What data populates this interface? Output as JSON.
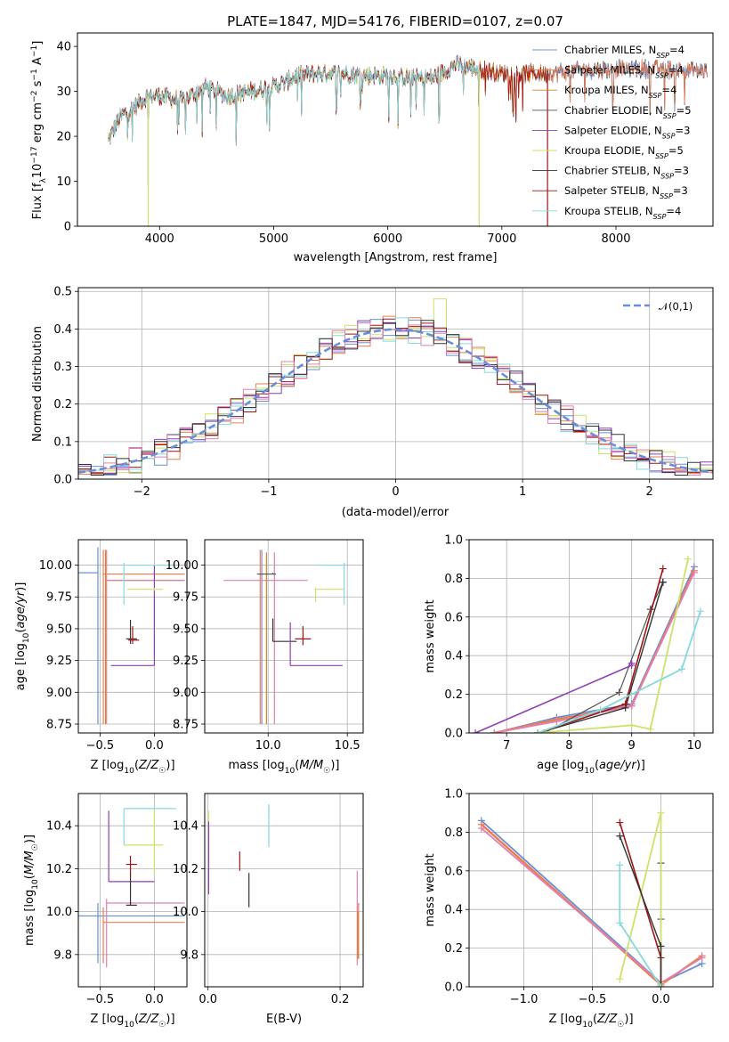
{
  "colors": {
    "Chabrier MILES": "#6b8fd6",
    "Salpeter MILES": "#ee7d4e",
    "Kroupa MILES": "#c98a1e",
    "Chabrier ELODIE": "#555555",
    "Salpeter ELODIE": "#8e3fb5",
    "Kroupa ELODIE": "#cbe36a",
    "Chabrier STELIB": "#333333",
    "Salpeter STELIB": "#a01515",
    "Kroupa STELIB": "#84d9dc",
    "extra_pink": "#e07fb0",
    "normal": "#6a8fd8"
  },
  "chart_data": [
    {
      "id": "spectrum",
      "type": "line",
      "title": "PLATE=1847, MJD=54176, FIBERID=0107, z=0.07",
      "xlabel": "wavelength [Angstrom, rest frame]",
      "ylabel": "Flux [f_λ 10^-17 erg cm^-2 s^-1 A^-1]",
      "xlim": [
        3280,
        8850
      ],
      "ylim": [
        0,
        43
      ],
      "xticks": [
        4000,
        5000,
        6000,
        7000,
        8000
      ],
      "yticks": [
        0,
        10,
        20,
        30,
        40
      ],
      "grid": false,
      "legend": "top-right",
      "continuum": [
        [
          3550,
          19
        ],
        [
          3650,
          24
        ],
        [
          3800,
          27
        ],
        [
          3900,
          29
        ],
        [
          4000,
          29
        ],
        [
          4200,
          28
        ],
        [
          4400,
          31
        ],
        [
          4600,
          29
        ],
        [
          4800,
          30
        ],
        [
          5000,
          31
        ],
        [
          5100,
          32
        ],
        [
          5200,
          33.5
        ],
        [
          5400,
          34
        ],
        [
          5600,
          34
        ],
        [
          5800,
          33.5
        ],
        [
          6000,
          33.5
        ],
        [
          6200,
          33
        ],
        [
          6400,
          33
        ],
        [
          6600,
          36
        ],
        [
          6800,
          35
        ],
        [
          7000,
          34
        ],
        [
          7200,
          34
        ],
        [
          7400,
          34
        ],
        [
          7600,
          34.5
        ],
        [
          8000,
          35
        ],
        [
          8400,
          35
        ],
        [
          8800,
          34.5
        ]
      ],
      "features": [
        {
          "name": "Salpeter ELODIE",
          "x": 3900,
          "ymin": 9
        },
        {
          "name": "Kroupa ELODIE",
          "x": 3900,
          "ymin": 0
        },
        {
          "name": "Kroupa ELODIE",
          "x": 6800,
          "ymin": 0
        },
        {
          "name": "Salpeter STELIB",
          "x": 7400,
          "ymin": 0
        }
      ],
      "series": [
        {
          "name": "Chabrier MILES",
          "label": "Chabrier MILES, N",
          "sub": "SSP",
          "n": "=4",
          "xmin": 3550,
          "xmax": 8800
        },
        {
          "name": "Salpeter MILES",
          "label": "Salpeter MILES, N",
          "sub": "SSP",
          "n": "=4",
          "xmin": 3550,
          "xmax": 8800
        },
        {
          "name": "Kroupa MILES",
          "label": "Kroupa MILES, N",
          "sub": "SSP",
          "n": "=4",
          "xmin": 3550,
          "xmax": 7400
        },
        {
          "name": "Chabrier ELODIE",
          "label": "Chabrier ELODIE, N",
          "sub": "SSP",
          "n": "=5",
          "xmin": 3550,
          "xmax": 8800
        },
        {
          "name": "Salpeter ELODIE",
          "label": "Salpeter ELODIE, N",
          "sub": "SSP",
          "n": "=3",
          "xmin": 3550,
          "xmax": 6800
        },
        {
          "name": "Kroupa ELODIE",
          "label": "Kroupa ELODIE, N",
          "sub": "SSP",
          "n": "=5",
          "xmin": 3550,
          "xmax": 6800
        },
        {
          "name": "Chabrier STELIB",
          "label": "Chabrier STELIB, N",
          "sub": "SSP",
          "n": "=3",
          "xmin": 3550,
          "xmax": 8800
        },
        {
          "name": "Salpeter STELIB",
          "label": "Salpeter STELIB, N",
          "sub": "SSP",
          "n": "=3",
          "xmin": 3550,
          "xmax": 7400
        },
        {
          "name": "Kroupa STELIB",
          "label": "Kroupa STELIB, N",
          "sub": "SSP",
          "n": "=4",
          "xmin": 3550,
          "xmax": 6800
        }
      ]
    },
    {
      "id": "residuals",
      "type": "bar",
      "title": "",
      "xlabel": "(data-model)/error",
      "ylabel": "Normed distribution",
      "xlim": [
        -2.5,
        2.5
      ],
      "ylim": [
        0,
        0.51
      ],
      "xticks": [
        -2,
        -1,
        0,
        1,
        2
      ],
      "yticks": [
        0.0,
        0.1,
        0.2,
        0.3,
        0.4,
        0.5
      ],
      "grid": true,
      "legend": "top-right",
      "legend_label": "𝒩(0,1)",
      "bin_width": 0.1,
      "hist_colors": [
        "Chabrier MILES",
        "Salpeter MILES",
        "Kroupa ELODIE",
        "Salpeter ELODIE",
        "Salpeter STELIB",
        "Kroupa STELIB",
        "extra_pink",
        "Chabrier STELIB"
      ]
    },
    {
      "id": "age-z",
      "type": "scatter",
      "xlabel": "Z [log₁₀(Z/Z☉)]",
      "ylabel": "age  [log₁₀(age/yr)]",
      "xlim": [
        -0.7,
        0.3
      ],
      "ylim": [
        8.68,
        10.2
      ],
      "xticks": [
        -0.5,
        0.0
      ],
      "xtick_labels": [
        "−0.5",
        "0.0"
      ],
      "yticks": [
        8.75,
        9.0,
        9.25,
        9.5,
        9.75,
        10.0
      ],
      "grid": true,
      "points": [
        {
          "c": "Chabrier MILES",
          "x": -0.52,
          "xe": [
            -0.72,
            -0.52
          ],
          "y": 9.94,
          "ye": [
            8.75,
            10.14
          ]
        },
        {
          "c": "Salpeter MILES",
          "x": -0.47,
          "xe": [
            -0.47,
            0.28
          ],
          "y": 9.93,
          "ye": [
            8.75,
            10.12
          ]
        },
        {
          "c": "Kroupa MILES",
          "x": -0.45,
          "xe": [
            -0.45,
            0.28
          ],
          "y": 9.88,
          "ye": [
            8.75,
            10.12
          ]
        },
        {
          "c": "extra_pink",
          "x": -0.44,
          "xe": [
            -0.44,
            0.28
          ],
          "y": 9.88,
          "ye": [
            8.75,
            10.12
          ]
        },
        {
          "c": "Chabrier STELIB",
          "x": -0.22,
          "xe": [
            -0.26,
            -0.16
          ],
          "y": 9.42,
          "ye": [
            9.38,
            9.57
          ]
        },
        {
          "c": "Salpeter STELIB",
          "x": -0.2,
          "xe": [
            -0.24,
            -0.14
          ],
          "y": 9.41,
          "ye": [
            9.38,
            9.52
          ]
        },
        {
          "c": "Salpeter ELODIE",
          "x": 0.0,
          "xe": [
            -0.4,
            0.0
          ],
          "y": 9.21,
          "ye": [
            9.21,
            10.0
          ]
        },
        {
          "c": "Kroupa ELODIE",
          "x": 0.0,
          "xe": [
            -0.25,
            0.08
          ],
          "y": 9.81,
          "ye": [
            9.8,
            9.82
          ]
        },
        {
          "c": "Kroupa STELIB",
          "x": -0.28,
          "xe": [
            -0.28,
            0.2
          ],
          "y": 10.0,
          "ye": [
            9.69,
            10.02
          ]
        }
      ]
    },
    {
      "id": "age-mass",
      "type": "scatter",
      "xlabel": "mass [log₁₀(M/M☉)]",
      "ylabel": "",
      "xlim": [
        9.6,
        10.6
      ],
      "ylim": [
        8.68,
        10.2
      ],
      "xticks": [
        10.0,
        10.5
      ],
      "xtick_labels": [
        "10.0",
        "10.5"
      ],
      "yticks": [
        8.75,
        9.0,
        9.25,
        9.5,
        9.75,
        10.0
      ],
      "grid": true,
      "points": [
        {
          "c": "Chabrier MILES",
          "x": 9.96,
          "xe": [
            9.96,
            9.96
          ],
          "y": 9.94,
          "ye": [
            8.75,
            10.12
          ]
        },
        {
          "c": "Salpeter MILES",
          "x": 9.95,
          "xe": [
            9.95,
            9.95
          ],
          "y": 9.93,
          "ye": [
            8.75,
            10.12
          ]
        },
        {
          "c": "Kroupa MILES",
          "x": 9.99,
          "xe": [
            9.99,
            9.99
          ],
          "y": 9.9,
          "ye": [
            8.75,
            10.1
          ]
        },
        {
          "c": "extra_pink",
          "x": 10.04,
          "xe": [
            9.72,
            10.25
          ],
          "y": 9.88,
          "ye": [
            8.75,
            10.1
          ]
        },
        {
          "c": "Chabrier ELODIE",
          "x": 10.03,
          "xe": [
            9.93,
            10.05
          ],
          "y": 9.93,
          "ye": [
            9.93,
            9.94
          ]
        },
        {
          "c": "Chabrier STELIB",
          "x": 10.03,
          "xe": [
            10.03,
            10.18
          ],
          "y": 9.4,
          "ye": [
            9.4,
            9.58
          ]
        },
        {
          "c": "Salpeter STELIB",
          "x": 10.22,
          "xe": [
            10.17,
            10.27
          ],
          "y": 9.42,
          "ye": [
            9.37,
            9.52
          ]
        },
        {
          "c": "Salpeter ELODIE",
          "x": 10.14,
          "xe": [
            10.14,
            10.47
          ],
          "y": 9.21,
          "ye": [
            9.21,
            9.55
          ]
        },
        {
          "c": "Kroupa ELODIE",
          "x": 10.3,
          "xe": [
            10.3,
            10.48
          ],
          "y": 9.81,
          "ye": [
            9.71,
            9.82
          ]
        },
        {
          "c": "Kroupa STELIB",
          "x": 10.48,
          "xe": [
            10.32,
            10.48
          ],
          "y": 10.0,
          "ye": [
            9.69,
            10.02
          ]
        }
      ]
    },
    {
      "id": "mw-age",
      "type": "line",
      "xlabel": "age  [log₁₀(age/yr)]",
      "ylabel": "mass weight",
      "xlim": [
        6.4,
        10.3
      ],
      "ylim": [
        0,
        1.0
      ],
      "xticks": [
        7,
        8,
        9,
        10
      ],
      "yticks": [
        0.0,
        0.2,
        0.4,
        0.6,
        0.8,
        1.0
      ],
      "grid": true,
      "series": [
        {
          "c": "Chabrier MILES",
          "w": 1.8,
          "x": [
            6.8,
            7.8,
            9.0,
            10.0
          ],
          "y": [
            0.0,
            0.08,
            0.15,
            0.86
          ]
        },
        {
          "c": "Salpeter MILES",
          "w": 2.4,
          "x": [
            6.8,
            7.8,
            9.0,
            10.0
          ],
          "y": [
            0.0,
            0.07,
            0.14,
            0.84
          ]
        },
        {
          "c": "extra_pink",
          "w": 1.8,
          "x": [
            6.8,
            7.8,
            9.0,
            10.0
          ],
          "y": [
            0.0,
            0.06,
            0.14,
            0.83
          ]
        },
        {
          "c": "Chabrier ELODIE",
          "w": 1.2,
          "x": [
            7.6,
            8.8,
            9.3,
            9.5
          ],
          "y": [
            0.0,
            0.21,
            0.64,
            0.78
          ]
        },
        {
          "c": "Salpeter ELODIE",
          "w": 1.6,
          "x": [
            6.5,
            9.0,
            9.0
          ],
          "y": [
            0.0,
            0.35,
            0.36
          ]
        },
        {
          "c": "Kroupa ELODIE",
          "w": 1.8,
          "x": [
            7.5,
            9.0,
            9.3,
            9.9
          ],
          "y": [
            0.0,
            0.04,
            0.02,
            0.9
          ]
        },
        {
          "c": "Chabrier STELIB",
          "w": 1.4,
          "x": [
            7.5,
            8.9,
            9.5
          ],
          "y": [
            0.0,
            0.13,
            0.78
          ]
        },
        {
          "c": "Salpeter STELIB",
          "w": 1.6,
          "x": [
            7.5,
            8.9,
            9.5
          ],
          "y": [
            0.0,
            0.15,
            0.85
          ]
        },
        {
          "c": "Kroupa STELIB",
          "w": 1.8,
          "x": [
            7.5,
            8.5,
            9.8,
            10.1
          ],
          "y": [
            0.0,
            0.12,
            0.33,
            0.63
          ]
        }
      ]
    },
    {
      "id": "mass-z",
      "type": "scatter",
      "xlabel": "Z [log₁₀(Z/Z☉)]",
      "ylabel": "mass [log₁₀(M/M☉)]",
      "xlim": [
        -0.7,
        0.3
      ],
      "ylim": [
        9.65,
        10.55
      ],
      "xticks": [
        -0.5,
        0.0
      ],
      "xtick_labels": [
        "−0.5",
        "0.0"
      ],
      "yticks": [
        9.8,
        10.0,
        10.2,
        10.4
      ],
      "yticks_label": [
        "9.8",
        "10.0",
        "10.2",
        "10.4"
      ],
      "grid": true,
      "points": [
        {
          "c": "Chabrier MILES",
          "x": -0.52,
          "xe": [
            -0.72,
            0.28
          ],
          "y": 9.98,
          "ye": [
            9.76,
            10.04
          ]
        },
        {
          "c": "Salpeter MILES",
          "x": -0.47,
          "xe": [
            -0.47,
            0.28
          ],
          "y": 9.95,
          "ye": [
            9.76,
            10.02
          ]
        },
        {
          "c": "extra_pink",
          "x": -0.44,
          "xe": [
            -0.44,
            0.28
          ],
          "y": 10.04,
          "ye": [
            9.74,
            10.06
          ]
        },
        {
          "c": "Salpeter ELODIE",
          "x": -0.42,
          "xe": [
            -0.42,
            0.0
          ],
          "y": 10.14,
          "ye": [
            10.14,
            10.47
          ]
        },
        {
          "c": "Chabrier STELIB",
          "x": -0.22,
          "xe": [
            -0.26,
            -0.16
          ],
          "y": 10.03,
          "ye": [
            10.03,
            10.18
          ]
        },
        {
          "c": "Salpeter STELIB",
          "x": -0.22,
          "xe": [
            -0.26,
            -0.16
          ],
          "y": 10.22,
          "ye": [
            10.17,
            10.26
          ]
        },
        {
          "c": "Kroupa ELODIE",
          "x": 0.0,
          "xe": [
            -0.28,
            0.08
          ],
          "y": 10.31,
          "ye": [
            10.17,
            10.48
          ]
        },
        {
          "c": "Kroupa STELIB",
          "x": -0.28,
          "xe": [
            -0.28,
            0.2
          ],
          "y": 10.48,
          "ye": [
            10.31,
            10.48
          ]
        }
      ]
    },
    {
      "id": "mass-ebv",
      "type": "scatter",
      "xlabel": "E(B-V)",
      "ylabel": "",
      "xlim": [
        -0.005,
        0.235
      ],
      "ylim": [
        9.65,
        10.55
      ],
      "xticks": [
        0.0,
        0.2
      ],
      "xtick_labels": [
        "0.0",
        "0.2"
      ],
      "yticks": [
        9.8,
        10.0,
        10.2,
        10.4
      ],
      "yticks_label": [
        "9.8",
        "10.0",
        "10.2",
        "10.4"
      ],
      "grid": true,
      "segments": [
        {
          "c": "Kroupa ELODIE",
          "x": 0.001,
          "y0": 10.2,
          "y1": 10.47
        },
        {
          "c": "Salpeter ELODIE",
          "x": 0.001,
          "y0": 10.08,
          "y1": 10.42
        },
        {
          "c": "Kroupa STELIB",
          "x": 0.092,
          "y0": 10.3,
          "y1": 10.5
        },
        {
          "c": "Salpeter STELIB",
          "x": 0.048,
          "y0": 10.19,
          "y1": 10.28
        },
        {
          "c": "Chabrier STELIB",
          "x": 0.062,
          "y0": 10.02,
          "y1": 10.18
        },
        {
          "c": "extra_pink",
          "x": 0.226,
          "y0": 9.75,
          "y1": 10.19
        },
        {
          "c": "Salpeter MILES",
          "x": 0.228,
          "y0": 9.78,
          "y1": 10.04
        },
        {
          "c": "Kroupa MILES",
          "x": 0.227,
          "y0": 9.78,
          "y1": 10.0
        }
      ]
    },
    {
      "id": "mw-z",
      "type": "line",
      "xlabel": "Z [log₁₀(Z/Z☉)]",
      "ylabel": "mass weight",
      "xlim": [
        -1.4,
        0.38
      ],
      "ylim": [
        0,
        1.0
      ],
      "xticks": [
        -1.0,
        -0.5,
        0.0
      ],
      "xtick_labels": [
        "−1.0",
        "−0.5",
        "0.0"
      ],
      "yticks": [
        0.0,
        0.2,
        0.4,
        0.6,
        0.8,
        1.0
      ],
      "grid": true,
      "series": [
        {
          "c": "Chabrier MILES",
          "w": 1.8,
          "x": [
            -1.31,
            0.0,
            0.3
          ],
          "y": [
            0.86,
            0.02,
            0.12
          ]
        },
        {
          "c": "Salpeter MILES",
          "w": 2.4,
          "x": [
            -1.31,
            0.0,
            0.3
          ],
          "y": [
            0.84,
            0.01,
            0.16
          ]
        },
        {
          "c": "extra_pink",
          "w": 1.8,
          "x": [
            -1.31,
            0.0,
            0.3
          ],
          "y": [
            0.82,
            0.02,
            0.15
          ]
        },
        {
          "c": "Chabrier ELODIE",
          "w": 1.2,
          "x": [
            0.0,
            0.0,
            0.0
          ],
          "y": [
            0.64,
            0.35,
            0.21
          ]
        },
        {
          "c": "Kroupa ELODIE",
          "w": 1.8,
          "x": [
            -0.3,
            0.0,
            0.0
          ],
          "y": [
            0.04,
            0.9,
            0.02
          ]
        },
        {
          "c": "Salpeter STELIB",
          "w": 1.6,
          "x": [
            -0.3,
            0.0,
            0.0
          ],
          "y": [
            0.85,
            0.15,
            0.0
          ]
        },
        {
          "c": "Chabrier STELIB",
          "w": 1.4,
          "x": [
            -0.3,
            0.0,
            0.0
          ],
          "y": [
            0.78,
            0.21,
            0.0
          ]
        },
        {
          "c": "Kroupa STELIB",
          "w": 1.8,
          "x": [
            -0.3,
            -0.3,
            0.0
          ],
          "y": [
            0.63,
            0.33,
            0.0
          ]
        }
      ]
    }
  ]
}
